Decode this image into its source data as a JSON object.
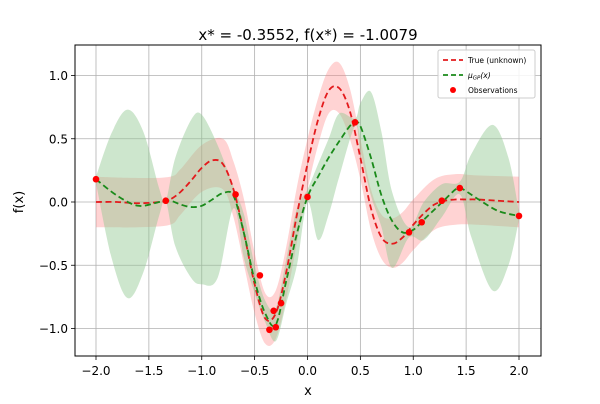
{
  "chart_data": {
    "type": "line",
    "title": "x* = -0.3552, f(x*) = -1.0079",
    "xlabel": "x",
    "ylabel": "f(x)",
    "xlim": [
      -2.2,
      2.2
    ],
    "ylim": [
      -1.22,
      1.22
    ],
    "grid": true,
    "legend_position": "upper right",
    "x_ticks": [
      -2.0,
      -1.5,
      -1.0,
      -0.5,
      0.0,
      0.5,
      1.0,
      1.5,
      2.0
    ],
    "x_tick_labels": [
      "−2.0",
      "−1.5",
      "−1.0",
      "−0.5",
      "0.0",
      "0.5",
      "1.0",
      "1.5",
      "2.0"
    ],
    "y_ticks": [
      1.0,
      0.5,
      0.0,
      -0.5,
      -1.0
    ],
    "y_tick_labels": [
      "1.0",
      "0.5",
      "0.0",
      "−0.5",
      "−1.0"
    ],
    "legend": [
      {
        "label": "True (unknown)",
        "style": "dashed",
        "color": "#e31a1c"
      },
      {
        "label": "μGP(x)",
        "style": "dashed",
        "color": "#1a8a1a"
      },
      {
        "label": "Observations",
        "style": "marker",
        "color": "#ff0000"
      }
    ],
    "series": [
      {
        "name": "True (unknown)",
        "color": "#e31a1c",
        "style": "dashed",
        "x": [
          -2.0,
          -1.8,
          -1.6,
          -1.4,
          -1.3,
          -1.2,
          -1.1,
          -1.0,
          -0.9,
          -0.8,
          -0.7,
          -0.6,
          -0.5,
          -0.4,
          -0.3,
          -0.2,
          -0.1,
          0.0,
          0.1,
          0.2,
          0.3,
          0.4,
          0.5,
          0.6,
          0.7,
          0.8,
          0.9,
          1.0,
          1.1,
          1.2,
          1.3,
          1.4,
          1.5,
          1.6,
          1.8,
          2.0
        ],
        "y": [
          0.0,
          0.0,
          -0.01,
          0.0,
          0.02,
          0.08,
          0.17,
          0.27,
          0.33,
          0.3,
          0.1,
          -0.25,
          -0.65,
          -0.92,
          -0.88,
          -0.55,
          -0.1,
          0.3,
          0.65,
          0.88,
          0.9,
          0.72,
          0.35,
          -0.05,
          -0.28,
          -0.33,
          -0.28,
          -0.18,
          -0.09,
          -0.02,
          0.01,
          0.02,
          0.02,
          0.02,
          0.01,
          0.0
        ]
      },
      {
        "name": "μGP(x)",
        "color": "#1a8a1a",
        "style": "dashed",
        "x": [
          -2.0,
          -1.8,
          -1.6,
          -1.4,
          -1.3,
          -1.2,
          -1.1,
          -1.0,
          -0.9,
          -0.8,
          -0.7,
          -0.6,
          -0.5,
          -0.4,
          -0.3,
          -0.2,
          -0.1,
          0.0,
          0.1,
          0.2,
          0.3,
          0.4,
          0.45,
          0.5,
          0.6,
          0.7,
          0.8,
          0.9,
          1.0,
          1.1,
          1.2,
          1.3,
          1.4,
          1.45,
          1.6,
          1.8,
          2.0
        ],
        "y": [
          0.18,
          0.05,
          -0.03,
          0.0,
          0.01,
          -0.02,
          -0.04,
          -0.03,
          0.02,
          0.07,
          0.05,
          -0.25,
          -0.62,
          -0.88,
          -0.97,
          -0.62,
          -0.25,
          0.04,
          0.2,
          0.35,
          0.48,
          0.6,
          0.63,
          0.6,
          0.35,
          0.05,
          -0.15,
          -0.24,
          -0.22,
          -0.14,
          -0.06,
          0.02,
          0.1,
          0.11,
          0.03,
          -0.07,
          -0.11
        ]
      }
    ],
    "bands": [
      {
        "name": "true confidence",
        "color": "#ff8080",
        "opacity": 0.35,
        "x": [
          -2.0,
          -1.6,
          -1.3,
          -1.2,
          -1.0,
          -0.8,
          -0.7,
          -0.6,
          -0.5,
          -0.4,
          -0.3,
          -0.2,
          -0.1,
          0.0,
          0.1,
          0.2,
          0.3,
          0.4,
          0.5,
          0.6,
          0.7,
          0.8,
          0.9,
          1.0,
          1.2,
          1.4,
          1.6,
          2.0
        ],
        "upper": [
          0.2,
          0.19,
          0.2,
          0.26,
          0.45,
          0.5,
          0.32,
          0.02,
          -0.4,
          -0.72,
          -0.7,
          -0.35,
          0.12,
          0.5,
          0.82,
          1.05,
          1.1,
          0.9,
          0.5,
          0.1,
          -0.1,
          -0.13,
          -0.08,
          0.02,
          0.18,
          0.22,
          0.21,
          0.2
        ],
        "lower": [
          -0.2,
          -0.2,
          -0.18,
          -0.1,
          0.08,
          0.1,
          -0.12,
          -0.5,
          -0.88,
          -1.12,
          -1.08,
          -0.76,
          -0.32,
          0.1,
          0.45,
          0.7,
          0.7,
          0.5,
          0.18,
          -0.22,
          -0.45,
          -0.52,
          -0.48,
          -0.38,
          -0.22,
          -0.18,
          -0.18,
          -0.2
        ]
      },
      {
        "name": "GP confidence",
        "color": "#90c890",
        "opacity": 0.45,
        "x": [
          -2.0,
          -1.85,
          -1.7,
          -1.55,
          -1.4,
          -1.34,
          -1.25,
          -1.1,
          -1.0,
          -0.85,
          -0.7,
          -0.6,
          -0.5,
          -0.4,
          -0.3,
          -0.2,
          -0.1,
          0.0,
          0.1,
          0.2,
          0.3,
          0.45,
          0.5,
          0.6,
          0.7,
          0.8,
          0.96,
          1.1,
          1.27,
          1.44,
          1.55,
          1.75,
          1.9,
          2.0
        ],
        "upper": [
          0.2,
          0.55,
          0.73,
          0.55,
          0.1,
          0.01,
          0.35,
          0.65,
          0.69,
          0.45,
          0.12,
          -0.1,
          -0.5,
          -0.78,
          -0.84,
          -0.45,
          -0.05,
          0.1,
          0.3,
          0.5,
          0.7,
          0.66,
          0.78,
          0.87,
          0.55,
          0.08,
          -0.2,
          0.0,
          0.14,
          0.16,
          0.38,
          0.61,
          0.35,
          -0.08
        ],
        "lower": [
          0.15,
          -0.45,
          -0.76,
          -0.55,
          -0.1,
          0.01,
          -0.35,
          -0.6,
          -0.65,
          -0.6,
          -0.05,
          -0.45,
          -0.72,
          -0.95,
          -1.1,
          -0.8,
          -0.5,
          0.0,
          -0.3,
          -0.1,
          0.2,
          0.6,
          0.4,
          0.05,
          -0.2,
          -0.52,
          -0.28,
          -0.3,
          -0.12,
          0.06,
          -0.28,
          -0.7,
          -0.5,
          -0.14
        ]
      }
    ],
    "observations": {
      "name": "Observations",
      "color": "#ff0000",
      "x": [
        -2.0,
        -1.34,
        -0.68,
        -0.45,
        -0.36,
        -0.32,
        -0.3,
        -0.25,
        0.0,
        0.45,
        0.96,
        1.08,
        1.27,
        1.44,
        2.0
      ],
      "y": [
        0.18,
        0.01,
        0.06,
        -0.58,
        -1.01,
        -0.86,
        -0.99,
        -0.8,
        0.04,
        0.63,
        -0.24,
        -0.16,
        0.01,
        0.11,
        -0.11
      ]
    }
  }
}
